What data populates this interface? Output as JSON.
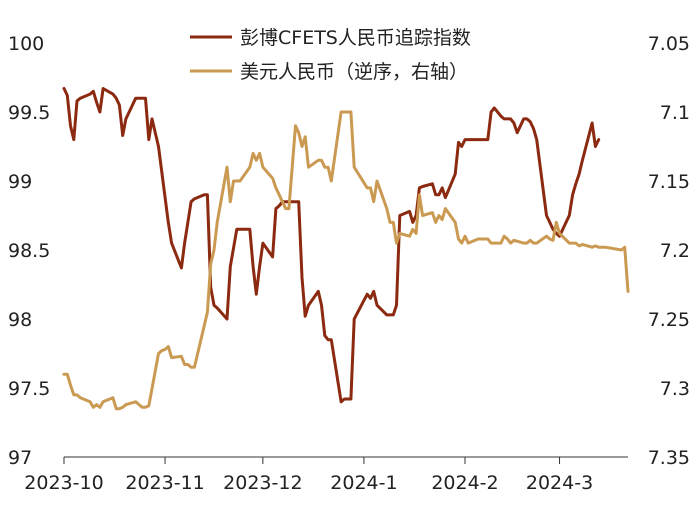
{
  "chart_data": {
    "type": "line",
    "title": "",
    "xlabel": "",
    "ylabel_left": "",
    "ylabel_right": "",
    "x_ticks": [
      "2023-10",
      "2023-11",
      "2023-12",
      "2024-1",
      "2024-2",
      "2024-3"
    ],
    "x_range": [
      "2023-10-01",
      "2024-03-22"
    ],
    "y_left": {
      "ticks": [
        "97",
        "97.5",
        "98",
        "98.5",
        "99",
        "99.5",
        "100"
      ],
      "range": [
        97,
        100
      ]
    },
    "y_right": {
      "ticks": [
        "7.05",
        "7.1",
        "7.15",
        "7.2",
        "7.25",
        "7.3",
        "7.35"
      ],
      "range": [
        7.05,
        7.35
      ],
      "inverted": true
    },
    "grid": false,
    "legend_position": "top",
    "series": [
      {
        "name": "彭博CFETS人民币追踪指数",
        "axis": "left",
        "color": "#8b2a10",
        "points": [
          [
            "2023-10-01",
            99.67
          ],
          [
            "2023-10-02",
            99.62
          ],
          [
            "2023-10-03",
            99.4
          ],
          [
            "2023-10-04",
            99.3
          ],
          [
            "2023-10-05",
            99.58
          ],
          [
            "2023-10-06",
            99.6
          ],
          [
            "2023-10-09",
            99.63
          ],
          [
            "2023-10-10",
            99.65
          ],
          [
            "2023-10-11",
            99.57
          ],
          [
            "2023-10-12",
            99.5
          ],
          [
            "2023-10-13",
            99.67
          ],
          [
            "2023-10-16",
            99.63
          ],
          [
            "2023-10-17",
            99.6
          ],
          [
            "2023-10-18",
            99.55
          ],
          [
            "2023-10-19",
            99.33
          ],
          [
            "2023-10-20",
            99.45
          ],
          [
            "2023-10-23",
            99.6
          ],
          [
            "2023-10-24",
            99.6
          ],
          [
            "2023-10-25",
            99.6
          ],
          [
            "2023-10-26",
            99.6
          ],
          [
            "2023-10-27",
            99.3
          ],
          [
            "2023-10-28",
            99.45
          ],
          [
            "2023-10-30",
            99.25
          ],
          [
            "2023-11-02",
            98.7
          ],
          [
            "2023-11-03",
            98.55
          ],
          [
            "2023-11-06",
            98.37
          ],
          [
            "2023-11-07",
            98.55
          ],
          [
            "2023-11-09",
            98.85
          ],
          [
            "2023-11-10",
            98.87
          ],
          [
            "2023-11-13",
            98.9
          ],
          [
            "2023-11-14",
            98.9
          ],
          [
            "2023-11-15",
            98.23
          ],
          [
            "2023-11-16",
            98.1
          ],
          [
            "2023-11-17",
            98.08
          ],
          [
            "2023-11-20",
            98.0
          ],
          [
            "2023-11-21",
            98.38
          ],
          [
            "2023-11-23",
            98.65
          ],
          [
            "2023-11-24",
            98.65
          ],
          [
            "2023-11-27",
            98.65
          ],
          [
            "2023-11-28",
            98.38
          ],
          [
            "2023-11-29",
            98.18
          ],
          [
            "2023-11-30",
            98.38
          ],
          [
            "2023-12-01",
            98.55
          ],
          [
            "2023-12-04",
            98.45
          ],
          [
            "2023-12-05",
            98.8
          ],
          [
            "2023-12-06",
            98.82
          ],
          [
            "2023-12-07",
            98.85
          ],
          [
            "2023-12-08",
            98.85
          ],
          [
            "2023-12-11",
            98.85
          ],
          [
            "2023-12-12",
            98.85
          ],
          [
            "2023-12-13",
            98.3
          ],
          [
            "2023-12-14",
            98.02
          ],
          [
            "2023-12-15",
            98.1
          ],
          [
            "2023-12-18",
            98.2
          ],
          [
            "2023-12-19",
            98.1
          ],
          [
            "2023-12-20",
            97.88
          ],
          [
            "2023-12-21",
            97.85
          ],
          [
            "2023-12-22",
            97.85
          ],
          [
            "2023-12-25",
            97.4
          ],
          [
            "2023-12-26",
            97.42
          ],
          [
            "2023-12-27",
            97.42
          ],
          [
            "2023-12-28",
            97.42
          ],
          [
            "2023-12-29",
            98.0
          ],
          [
            "2024-01-02",
            98.18
          ],
          [
            "2024-01-03",
            98.15
          ],
          [
            "2024-01-04",
            98.2
          ],
          [
            "2024-01-05",
            98.1
          ],
          [
            "2024-01-08",
            98.03
          ],
          [
            "2024-01-09",
            98.03
          ],
          [
            "2024-01-10",
            98.03
          ],
          [
            "2024-01-11",
            98.1
          ],
          [
            "2024-01-12",
            98.75
          ],
          [
            "2024-01-15",
            98.78
          ],
          [
            "2024-01-16",
            98.7
          ],
          [
            "2024-01-17",
            98.75
          ],
          [
            "2024-01-18",
            98.95
          ],
          [
            "2024-01-19",
            98.96
          ],
          [
            "2024-01-22",
            98.98
          ],
          [
            "2024-01-23",
            98.9
          ],
          [
            "2024-01-24",
            98.9
          ],
          [
            "2024-01-25",
            98.95
          ],
          [
            "2024-01-26",
            98.88
          ],
          [
            "2024-01-29",
            99.05
          ],
          [
            "2024-01-30",
            99.28
          ],
          [
            "2024-01-31",
            99.25
          ],
          [
            "2024-02-01",
            99.3
          ],
          [
            "2024-02-02",
            99.3
          ],
          [
            "2024-02-05",
            99.3
          ],
          [
            "2024-02-06",
            99.3
          ],
          [
            "2024-02-07",
            99.3
          ],
          [
            "2024-02-08",
            99.3
          ],
          [
            "2024-02-09",
            99.5
          ],
          [
            "2024-02-10",
            99.53
          ],
          [
            "2024-02-12",
            99.47
          ],
          [
            "2024-02-13",
            99.45
          ],
          [
            "2024-02-14",
            99.45
          ],
          [
            "2024-02-15",
            99.45
          ],
          [
            "2024-02-16",
            99.42
          ],
          [
            "2024-02-17",
            99.35
          ],
          [
            "2024-02-19",
            99.45
          ],
          [
            "2024-02-20",
            99.45
          ],
          [
            "2024-02-21",
            99.43
          ],
          [
            "2024-02-22",
            99.38
          ],
          [
            "2024-02-23",
            99.3
          ],
          [
            "2024-02-26",
            98.75
          ],
          [
            "2024-02-27",
            98.7
          ],
          [
            "2024-02-28",
            98.65
          ],
          [
            "2024-02-29",
            98.62
          ],
          [
            "2024-03-01",
            98.6
          ],
          [
            "2024-03-04",
            98.75
          ],
          [
            "2024-03-05",
            98.9
          ],
          [
            "2024-03-06",
            98.98
          ],
          [
            "2024-03-07",
            99.05
          ],
          [
            "2024-03-08",
            99.15
          ],
          [
            "2024-03-11",
            99.42
          ],
          [
            "2024-03-12",
            99.25
          ],
          [
            "2024-03-13",
            99.3
          ]
        ]
      },
      {
        "name": "美元人民币（逆序，右轴）",
        "axis": "right",
        "color": "#cb9a52",
        "points": [
          [
            "2023-10-01",
            7.29
          ],
          [
            "2023-10-02",
            7.29
          ],
          [
            "2023-10-03",
            7.298
          ],
          [
            "2023-10-04",
            7.305
          ],
          [
            "2023-10-05",
            7.305
          ],
          [
            "2023-10-06",
            7.307
          ],
          [
            "2023-10-09",
            7.31
          ],
          [
            "2023-10-10",
            7.314
          ],
          [
            "2023-10-11",
            7.312
          ],
          [
            "2023-10-12",
            7.314
          ],
          [
            "2023-10-13",
            7.31
          ],
          [
            "2023-10-16",
            7.307
          ],
          [
            "2023-10-17",
            7.315
          ],
          [
            "2023-10-18",
            7.315
          ],
          [
            "2023-10-19",
            7.314
          ],
          [
            "2023-10-20",
            7.312
          ],
          [
            "2023-10-23",
            7.31
          ],
          [
            "2023-10-24",
            7.312
          ],
          [
            "2023-10-25",
            7.314
          ],
          [
            "2023-10-26",
            7.314
          ],
          [
            "2023-10-27",
            7.313
          ],
          [
            "2023-10-30",
            7.275
          ],
          [
            "2023-10-31",
            7.273
          ],
          [
            "2023-11-01",
            7.272
          ],
          [
            "2023-11-02",
            7.27
          ],
          [
            "2023-11-03",
            7.278
          ],
          [
            "2023-11-06",
            7.277
          ],
          [
            "2023-11-07",
            7.283
          ],
          [
            "2023-11-08",
            7.283
          ],
          [
            "2023-11-09",
            7.285
          ],
          [
            "2023-11-10",
            7.285
          ],
          [
            "2023-11-13",
            7.255
          ],
          [
            "2023-11-14",
            7.245
          ],
          [
            "2023-11-15",
            7.21
          ],
          [
            "2023-11-16",
            7.2
          ],
          [
            "2023-11-17",
            7.18
          ],
          [
            "2023-11-20",
            7.14
          ],
          [
            "2023-11-21",
            7.165
          ],
          [
            "2023-11-22",
            7.15
          ],
          [
            "2023-11-23",
            7.15
          ],
          [
            "2023-11-24",
            7.15
          ],
          [
            "2023-11-27",
            7.14
          ],
          [
            "2023-11-28",
            7.13
          ],
          [
            "2023-11-29",
            7.135
          ],
          [
            "2023-11-30",
            7.13
          ],
          [
            "2023-12-01",
            7.14
          ],
          [
            "2023-12-04",
            7.148
          ],
          [
            "2023-12-05",
            7.155
          ],
          [
            "2023-12-06",
            7.16
          ],
          [
            "2023-12-07",
            7.165
          ],
          [
            "2023-12-08",
            7.17
          ],
          [
            "2023-12-09",
            7.17
          ],
          [
            "2023-12-11",
            7.11
          ],
          [
            "2023-12-12",
            7.115
          ],
          [
            "2023-12-13",
            7.125
          ],
          [
            "2023-12-14",
            7.118
          ],
          [
            "2023-12-15",
            7.14
          ],
          [
            "2023-12-18",
            7.135
          ],
          [
            "2023-12-19",
            7.135
          ],
          [
            "2023-12-20",
            7.14
          ],
          [
            "2023-12-21",
            7.14
          ],
          [
            "2023-12-22",
            7.15
          ],
          [
            "2023-12-25",
            7.1
          ],
          [
            "2023-12-26",
            7.1
          ],
          [
            "2023-12-27",
            7.1
          ],
          [
            "2023-12-28",
            7.1
          ],
          [
            "2023-12-29",
            7.14
          ],
          [
            "2024-01-02",
            7.155
          ],
          [
            "2024-01-03",
            7.155
          ],
          [
            "2024-01-04",
            7.165
          ],
          [
            "2024-01-05",
            7.15
          ],
          [
            "2024-01-08",
            7.17
          ],
          [
            "2024-01-09",
            7.18
          ],
          [
            "2024-01-10",
            7.18
          ],
          [
            "2024-01-11",
            7.195
          ],
          [
            "2024-01-12",
            7.188
          ],
          [
            "2024-01-15",
            7.19
          ],
          [
            "2024-01-16",
            7.185
          ],
          [
            "2024-01-17",
            7.188
          ],
          [
            "2024-01-18",
            7.16
          ],
          [
            "2024-01-19",
            7.175
          ],
          [
            "2024-01-22",
            7.173
          ],
          [
            "2024-01-23",
            7.18
          ],
          [
            "2024-01-24",
            7.175
          ],
          [
            "2024-01-25",
            7.178
          ],
          [
            "2024-01-26",
            7.17
          ],
          [
            "2024-01-29",
            7.18
          ],
          [
            "2024-01-30",
            7.192
          ],
          [
            "2024-01-31",
            7.195
          ],
          [
            "2024-02-01",
            7.19
          ],
          [
            "2024-02-02",
            7.195
          ],
          [
            "2024-02-05",
            7.192
          ],
          [
            "2024-02-06",
            7.192
          ],
          [
            "2024-02-07",
            7.192
          ],
          [
            "2024-02-08",
            7.192
          ],
          [
            "2024-02-09",
            7.195
          ],
          [
            "2024-02-12",
            7.195
          ],
          [
            "2024-02-13",
            7.19
          ],
          [
            "2024-02-14",
            7.192
          ],
          [
            "2024-02-15",
            7.195
          ],
          [
            "2024-02-16",
            7.193
          ],
          [
            "2024-02-19",
            7.195
          ],
          [
            "2024-02-20",
            7.195
          ],
          [
            "2024-02-21",
            7.193
          ],
          [
            "2024-02-22",
            7.195
          ],
          [
            "2024-02-23",
            7.195
          ],
          [
            "2024-02-26",
            7.19
          ],
          [
            "2024-02-27",
            7.192
          ],
          [
            "2024-02-28",
            7.193
          ],
          [
            "2024-02-29",
            7.18
          ],
          [
            "2024-03-01",
            7.188
          ],
          [
            "2024-03-04",
            7.195
          ],
          [
            "2024-03-05",
            7.195
          ],
          [
            "2024-03-06",
            7.195
          ],
          [
            "2024-03-07",
            7.197
          ],
          [
            "2024-03-08",
            7.196
          ],
          [
            "2024-03-11",
            7.198
          ],
          [
            "2024-03-12",
            7.197
          ],
          [
            "2024-03-13",
            7.198
          ],
          [
            "2024-03-14",
            7.198
          ],
          [
            "2024-03-15",
            7.198
          ],
          [
            "2024-03-20",
            7.2
          ],
          [
            "2024-03-21",
            7.198
          ],
          [
            "2024-03-22",
            7.23
          ]
        ]
      }
    ]
  }
}
